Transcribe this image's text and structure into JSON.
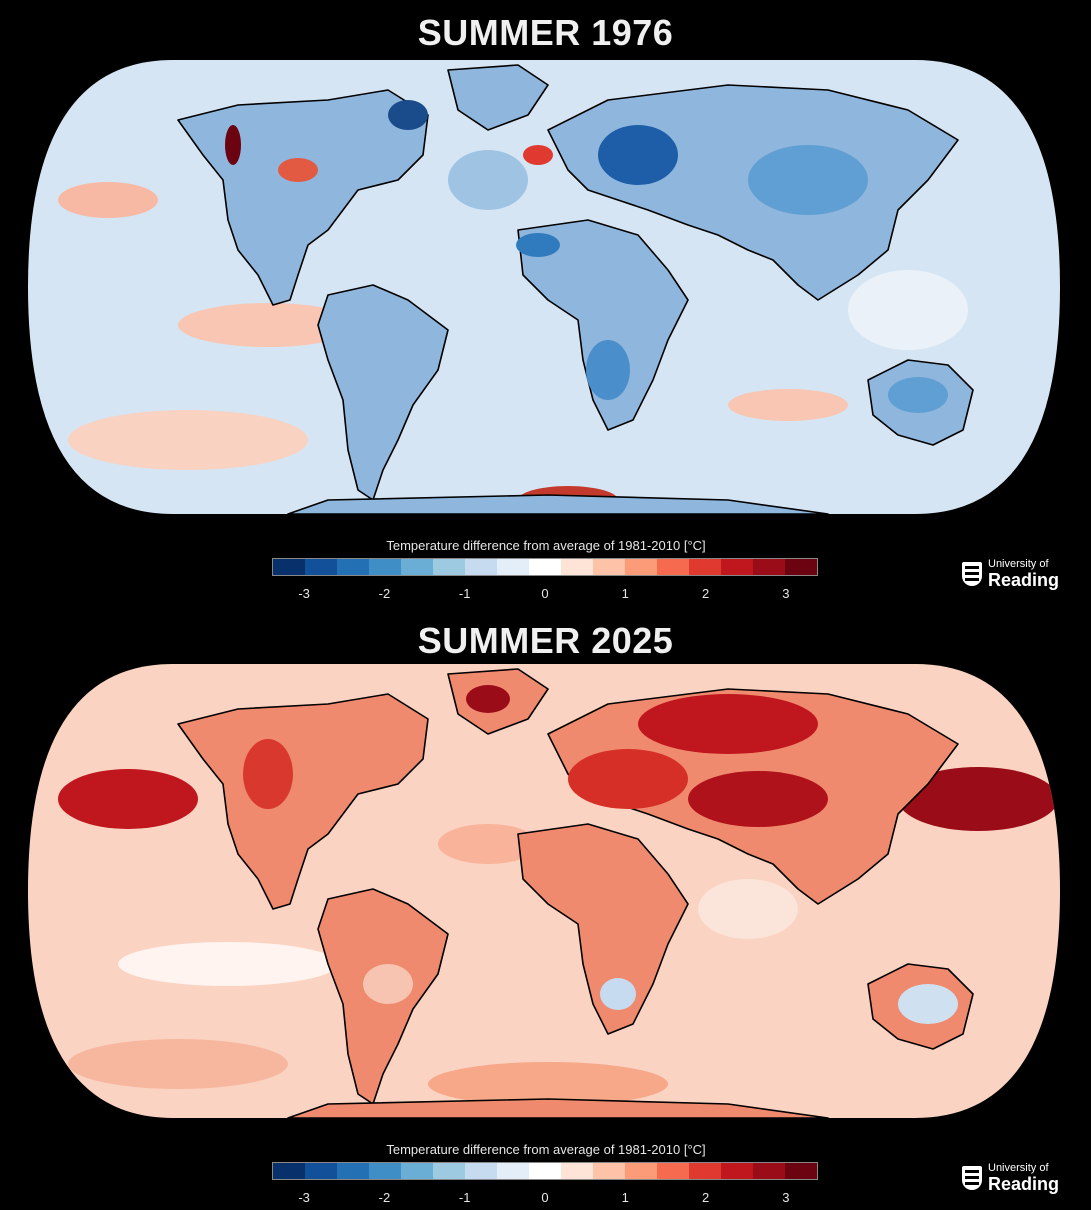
{
  "top_panel": {
    "title": "SUMMER 1976",
    "colorbar_label": "Temperature difference from average of 1981-2010 [°C]",
    "tick_labels": [
      "-3",
      "-2",
      "-1",
      "0",
      "1",
      "2",
      "3"
    ],
    "logo_line1": "University of",
    "logo_line2": "Reading",
    "ocean_color": "#d4e4f2",
    "land_color": "#8fb6dc"
  },
  "bottom_panel": {
    "title": "SUMMER 2025",
    "colorbar_label": "Temperature difference from average of 1981-2010 [°C]",
    "tick_labels": [
      "-3",
      "-2",
      "-1",
      "0",
      "1",
      "2",
      "3"
    ],
    "logo_line1": "University of",
    "logo_line2": "Reading",
    "ocean_color": "#fbd6c6",
    "land_color": "#ec7d62"
  },
  "colorbar_colors": [
    "#08306b",
    "#12509a",
    "#2470b4",
    "#3f8ec6",
    "#6aaed6",
    "#9dcae1",
    "#c6dbef",
    "#e3eef8",
    "#ffffff",
    "#fde4d6",
    "#fcc3a8",
    "#fb9b77",
    "#f66b4f",
    "#e0392f",
    "#c0161d",
    "#9a0d18",
    "#6b0410"
  ],
  "icons": [
    "university-crest-icon"
  ]
}
